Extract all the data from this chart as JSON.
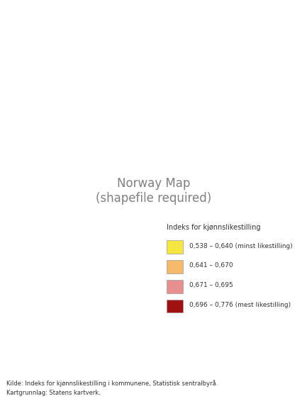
{
  "title": "",
  "legend_title": "Indeks for kjønnslikestilling",
  "legend_entries": [
    {
      "label": "0,538 – 0,640 (minst likestilling)",
      "color": "#F5E642"
    },
    {
      "label": "0,641 – 0,670",
      "color": "#F5B96E"
    },
    {
      "label": "0,671 – 0,695",
      "color": "#E89090"
    },
    {
      "label": "0,696 – 0,776 (mest likestilling)",
      "color": "#A01010"
    }
  ],
  "source_text": "Kilde: Indeks for kjønnslikestilling i kommunene, Statistisk sentralbyrå.\nKartgrunnlag: Statens kartverk.",
  "colors": {
    "cat1": "#F5E642",
    "cat2": "#F5B96E",
    "cat3": "#E89090",
    "cat4": "#A01010",
    "border": "#888888",
    "background": "#ffffff"
  },
  "figsize": [
    4.33,
    5.73
  ],
  "dpi": 100
}
